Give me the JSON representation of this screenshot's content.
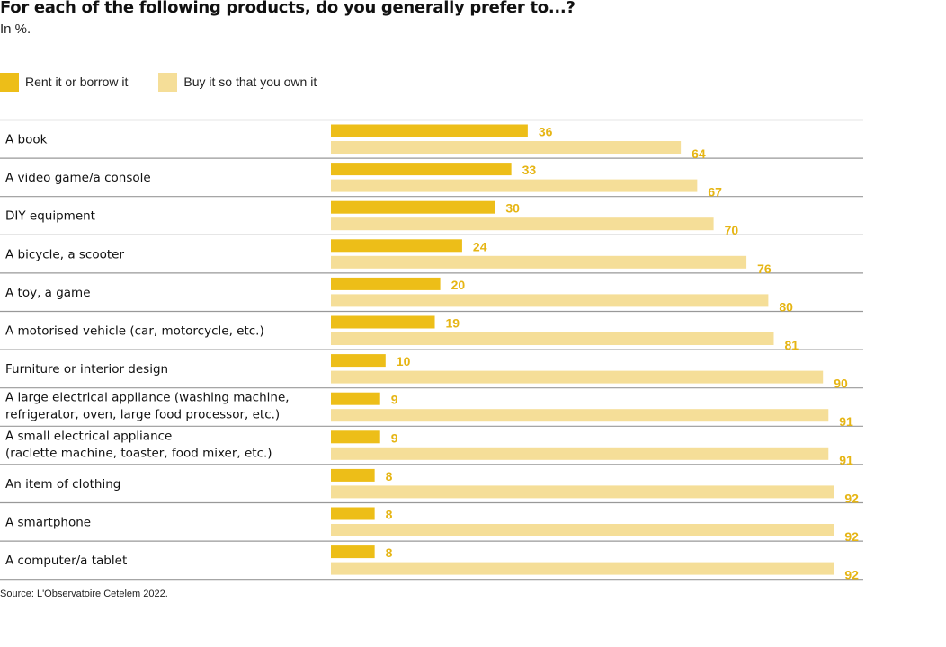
{
  "chart_data": {
    "type": "bar",
    "orientation": "horizontal",
    "title": "For each of the following products, do you generally prefer to...?",
    "subtitle": "In %.",
    "xlabel": "",
    "ylabel": "",
    "xlim": [
      0,
      100
    ],
    "grid": false,
    "legend_position": "top-left",
    "categories": [
      [
        "A book"
      ],
      [
        "A video game/a console"
      ],
      [
        "DIY equipment"
      ],
      [
        "A bicycle, a scooter"
      ],
      [
        "A toy, a game"
      ],
      [
        "A motorised vehicle (car, motorcycle, etc.)"
      ],
      [
        "Furniture or interior design"
      ],
      [
        "A large electrical appliance (washing machine,",
        "refrigerator, oven, large food processor, etc.)"
      ],
      [
        "A small electrical appliance",
        "(raclette machine, toaster, food mixer, etc.)"
      ],
      [
        "An item of clothing"
      ],
      [
        "A smartphone"
      ],
      [
        "A computer/a tablet"
      ]
    ],
    "series": [
      {
        "name": "Rent it or borrow it",
        "color": "#EDBE18",
        "label_color": "#E6B514",
        "values": [
          36,
          33,
          30,
          24,
          20,
          19,
          10,
          9,
          9,
          8,
          8,
          8
        ]
      },
      {
        "name": "Buy it so that you own it",
        "color": "#F5DE98",
        "label_color": "#E6B514",
        "values": [
          64,
          67,
          70,
          76,
          80,
          81,
          90,
          91,
          91,
          92,
          92,
          92
        ]
      }
    ],
    "source": "Source: L'Observatoire Cetelem 2022."
  },
  "divider_color": "#999999"
}
